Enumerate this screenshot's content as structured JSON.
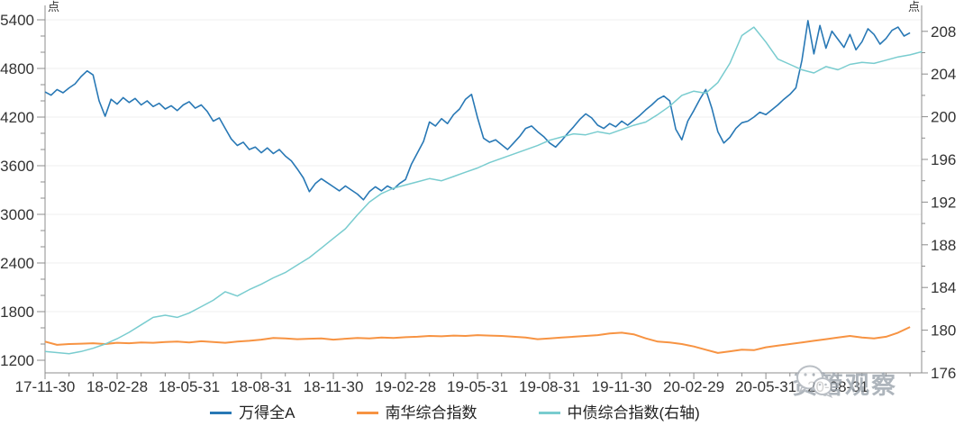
{
  "watermark": {
    "text": "资管观察"
  },
  "chart_data": {
    "type": "line",
    "title": "",
    "x_axis": {
      "labels": [
        "17-11-30",
        "18-02-28",
        "18-05-31",
        "18-08-31",
        "18-11-30",
        "19-02-28",
        "19-05-31",
        "19-08-31",
        "19-11-30",
        "20-02-29",
        "20-05-31",
        "20-08-31"
      ],
      "label_interval_months": 3,
      "minor_tick_interval_months": 1
    },
    "left_axis": {
      "unit": "点",
      "ticks": [
        5400,
        4800,
        4200,
        3600,
        3000,
        2400,
        1800,
        1200
      ],
      "range": [
        1200,
        5400
      ],
      "minor_step": 200
    },
    "right_axis": {
      "unit": "点",
      "ticks": [
        208,
        204,
        200,
        196,
        192,
        188,
        184,
        180,
        176
      ],
      "range": [
        176,
        208
      ],
      "minor_step": 2
    },
    "grid": "horizontal-faint",
    "legend_position": "bottom-center",
    "series": [
      {
        "name": "万得全A",
        "axis": "left",
        "color": "#2878b5",
        "step_months": 0.25,
        "values": [
          4510,
          4470,
          4540,
          4500,
          4560,
          4610,
          4700,
          4770,
          4720,
          4400,
          4210,
          4420,
          4360,
          4440,
          4380,
          4430,
          4350,
          4400,
          4330,
          4370,
          4300,
          4340,
          4280,
          4350,
          4390,
          4310,
          4350,
          4270,
          4150,
          4190,
          4060,
          3930,
          3850,
          3890,
          3800,
          3830,
          3760,
          3820,
          3750,
          3800,
          3720,
          3660,
          3560,
          3450,
          3280,
          3380,
          3440,
          3390,
          3340,
          3290,
          3350,
          3300,
          3250,
          3180,
          3280,
          3340,
          3290,
          3350,
          3310,
          3380,
          3430,
          3620,
          3760,
          3900,
          4140,
          4090,
          4180,
          4120,
          4230,
          4300,
          4420,
          4480,
          4190,
          3940,
          3890,
          3920,
          3860,
          3800,
          3880,
          3960,
          4060,
          4090,
          4020,
          3960,
          3880,
          3830,
          3910,
          4000,
          4080,
          4170,
          4240,
          4190,
          4100,
          4060,
          4120,
          4080,
          4150,
          4100,
          4160,
          4220,
          4290,
          4350,
          4420,
          4460,
          4400,
          4050,
          3920,
          4150,
          4280,
          4420,
          4540,
          4310,
          4020,
          3880,
          3950,
          4060,
          4130,
          4150,
          4200,
          4260,
          4230,
          4290,
          4350,
          4420,
          4480,
          4560,
          4900,
          5390,
          4980,
          5330,
          5050,
          5260,
          5160,
          5060,
          5220,
          5030,
          5130,
          5290,
          5220,
          5100,
          5170,
          5270,
          5310,
          5200,
          5240
        ]
      },
      {
        "name": "南华综合指数",
        "axis": "left",
        "color": "#f79342",
        "step_months": 0.5,
        "values": [
          1430,
          1390,
          1400,
          1405,
          1410,
          1400,
          1415,
          1410,
          1420,
          1415,
          1425,
          1430,
          1420,
          1435,
          1425,
          1415,
          1430,
          1440,
          1455,
          1475,
          1470,
          1460,
          1465,
          1470,
          1455,
          1465,
          1475,
          1470,
          1480,
          1475,
          1485,
          1490,
          1500,
          1495,
          1505,
          1500,
          1510,
          1505,
          1500,
          1490,
          1480,
          1460,
          1470,
          1480,
          1490,
          1500,
          1510,
          1530,
          1540,
          1520,
          1470,
          1430,
          1420,
          1400,
          1370,
          1330,
          1290,
          1310,
          1330,
          1325,
          1360,
          1380,
          1400,
          1420,
          1440,
          1460,
          1480,
          1500,
          1480,
          1470,
          1490,
          1540,
          1610
        ]
      },
      {
        "name": "中债综合指数(右轴)",
        "axis": "right",
        "color": "#79cccf",
        "step_months": 0.5,
        "values": [
          178.0,
          177.9,
          177.8,
          178.0,
          178.3,
          178.7,
          179.2,
          179.8,
          180.5,
          181.2,
          181.4,
          181.2,
          181.6,
          182.2,
          182.8,
          183.6,
          183.2,
          183.8,
          184.3,
          184.9,
          185.4,
          186.1,
          186.8,
          187.7,
          188.6,
          189.5,
          190.8,
          192.0,
          192.8,
          193.3,
          193.6,
          193.9,
          194.2,
          194.0,
          194.4,
          194.8,
          195.2,
          195.7,
          196.1,
          196.5,
          196.9,
          197.3,
          197.8,
          198.1,
          198.4,
          198.3,
          198.6,
          198.4,
          198.8,
          199.2,
          199.5,
          200.2,
          201.0,
          202.0,
          202.4,
          202.2,
          203.2,
          205.0,
          207.6,
          208.4,
          207.0,
          205.4,
          204.9,
          204.4,
          204.1,
          204.7,
          204.4,
          204.9,
          205.1,
          205.0,
          205.3,
          205.6,
          205.8,
          206.1
        ]
      }
    ]
  }
}
